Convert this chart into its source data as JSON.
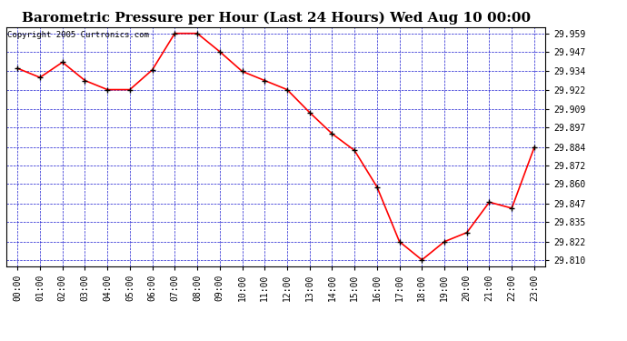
{
  "title": "Barometric Pressure per Hour (Last 24 Hours) Wed Aug 10 00:00",
  "copyright": "Copyright 2005 Curtronics.com",
  "hours": [
    0,
    1,
    2,
    3,
    4,
    5,
    6,
    7,
    8,
    9,
    10,
    11,
    12,
    13,
    14,
    15,
    16,
    17,
    18,
    19,
    20,
    21,
    22,
    23
  ],
  "values": [
    29.936,
    29.93,
    29.94,
    29.928,
    29.922,
    29.922,
    29.935,
    29.959,
    29.959,
    29.947,
    29.934,
    29.928,
    29.922,
    29.907,
    29.893,
    29.882,
    29.858,
    29.822,
    29.81,
    29.822,
    29.828,
    29.848,
    29.844,
    29.884
  ],
  "line_color": "red",
  "marker_color": "black",
  "bg_color": "#ffffff",
  "plot_bg": "#ffffff",
  "grid_color": "#0000cc",
  "yticks": [
    29.81,
    29.822,
    29.835,
    29.847,
    29.86,
    29.872,
    29.884,
    29.897,
    29.909,
    29.922,
    29.934,
    29.947,
    29.959
  ],
  "ylim_min": 29.806,
  "ylim_max": 29.963,
  "xlim_min": -0.5,
  "xlim_max": 23.5,
  "title_fontsize": 11,
  "copyright_fontsize": 6.5,
  "tick_fontsize": 7
}
